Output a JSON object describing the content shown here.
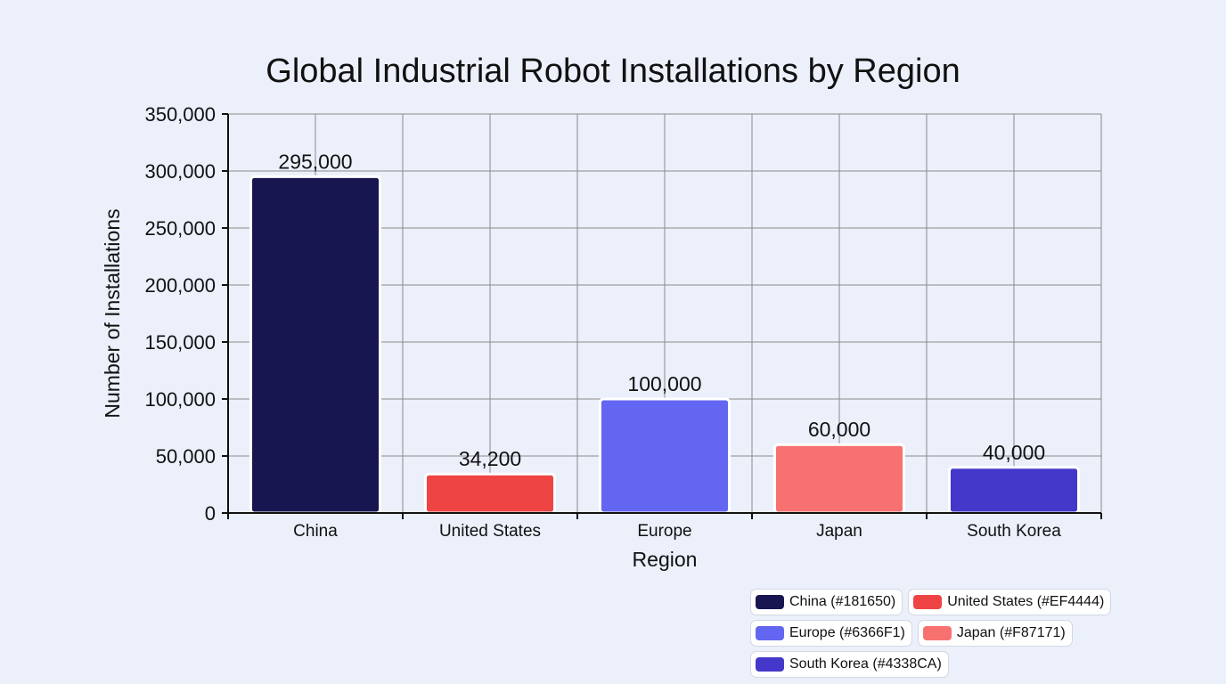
{
  "chart_data": {
    "type": "bar",
    "title": "Global Industrial Robot Installations by Region",
    "xlabel": "Region",
    "ylabel": "Number of Installations",
    "categories": [
      "China",
      "United States",
      "Europe",
      "Japan",
      "South Korea"
    ],
    "values": [
      295000,
      34200,
      100000,
      60000,
      40000
    ],
    "value_labels": [
      "295,000",
      "34,200",
      "100,000",
      "60,000",
      "40,000"
    ],
    "colors": [
      "#181650",
      "#EF4444",
      "#6366F1",
      "#F87171",
      "#4338CA"
    ],
    "ylim": [
      0,
      350000
    ],
    "yticks": [
      0,
      50000,
      100000,
      150000,
      200000,
      250000,
      300000,
      350000
    ],
    "ytick_labels": [
      "0",
      "50,000",
      "100,000",
      "150,000",
      "200,000",
      "250,000",
      "300,000",
      "350,000"
    ],
    "grid": true,
    "legend_position": "bottom-right",
    "legend": [
      {
        "label": "China (#181650)",
        "color": "#181650"
      },
      {
        "label": "United States (#EF4444)",
        "color": "#EF4444"
      },
      {
        "label": "Europe (#6366F1)",
        "color": "#6366F1"
      },
      {
        "label": "Japan (#F87171)",
        "color": "#F87171"
      },
      {
        "label": "South Korea (#4338CA)",
        "color": "#4338CA"
      }
    ]
  }
}
